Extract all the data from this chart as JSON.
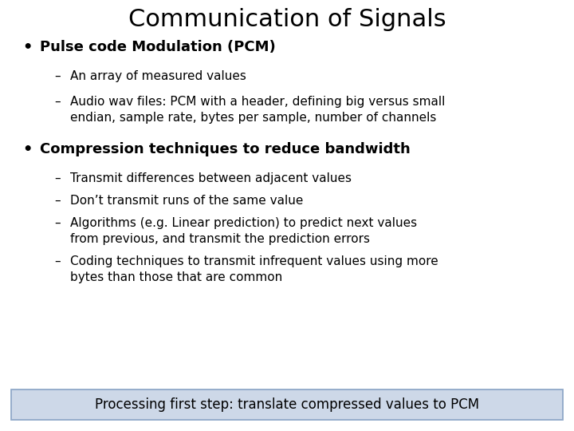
{
  "title": "Communication of Signals",
  "title_fontsize": 22,
  "title_color": "#000000",
  "background_color": "#ffffff",
  "bullet1_text": "Pulse code Modulation (PCM)",
  "bullet1_fontsize": 13,
  "sub1a": "An array of measured values",
  "sub1b_line1": "Audio wav files: PCM with a header, defining big versus small",
  "sub1b_line2": "endian, sample rate, bytes per sample, number of channels",
  "bullet2_text": "Compression techniques to reduce bandwidth",
  "bullet2_fontsize": 13,
  "sub2a": "Transmit differences between adjacent values",
  "sub2b": "Don’t transmit runs of the same value",
  "sub2c_line1": "Algorithms (e.g. Linear prediction) to predict next values",
  "sub2c_line2": "from previous, and transmit the prediction errors",
  "sub2d_line1": "Coding techniques to transmit infrequent values using more",
  "sub2d_line2": "bytes than those that are common",
  "sub_fontsize": 11,
  "footer_text": "Processing first step: translate compressed values to PCM",
  "footer_fontsize": 12,
  "footer_bg": "#cdd8e8",
  "footer_border": "#8fa8c8"
}
